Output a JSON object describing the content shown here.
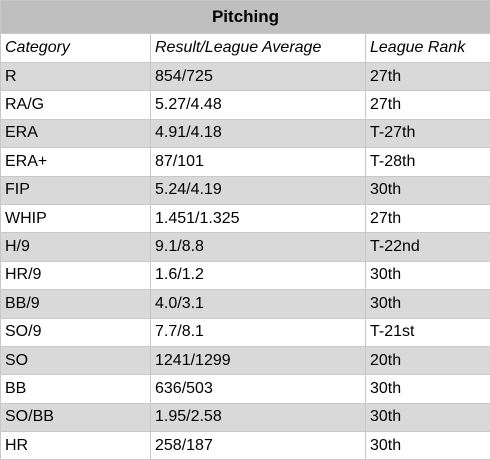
{
  "title": "Pitching",
  "table": {
    "header": [
      "Category",
      "Result/League Average",
      "League Rank"
    ],
    "rows": [
      [
        "R",
        "854/725",
        "27th"
      ],
      [
        "RA/G",
        "5.27/4.48",
        "27th"
      ],
      [
        "ERA",
        "4.91/4.18",
        "T-27th"
      ],
      [
        "ERA+",
        "87/101",
        "T-28th"
      ],
      [
        "FIP",
        "5.24/4.19",
        "30th"
      ],
      [
        "WHIP",
        "1.451/1.325",
        "27th"
      ],
      [
        "H/9",
        "9.1/8.8",
        "T-22nd"
      ],
      [
        "HR/9",
        "1.6/1.2",
        "30th"
      ],
      [
        "BB/9",
        "4.0/3.1",
        "30th"
      ],
      [
        "SO/9",
        "7.7/8.1",
        "T-21st"
      ],
      [
        "SO",
        "1241/1299",
        "20th"
      ],
      [
        "BB",
        "636/503",
        "30th"
      ],
      [
        "SO/BB",
        "1.95/2.58",
        "30th"
      ],
      [
        "HR",
        "258/187",
        "30th"
      ]
    ]
  }
}
